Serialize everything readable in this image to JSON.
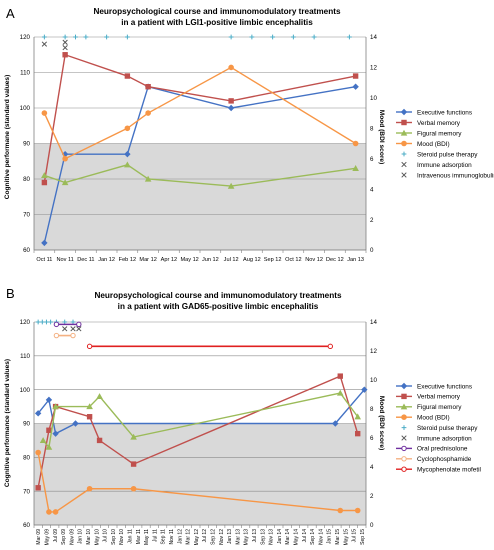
{
  "panels": [
    {
      "letter": "A",
      "title_lines": [
        "Neuropsychological course and immunomodulatory treatments",
        "in a patient with LGI1-positive limbic encephalitis"
      ],
      "y_label_left": "Cognitive performane (standard values)",
      "y_label_right": "Mood (BDI score)",
      "legend": [
        {
          "label": "Executive functions",
          "kind": "line-marker",
          "color": "#4472C4",
          "marker": "diamond"
        },
        {
          "label": "Verbal memory",
          "kind": "line-marker",
          "color": "#C0504D",
          "marker": "square"
        },
        {
          "label": "Figural memory",
          "kind": "line-marker",
          "color": "#9BBB59",
          "marker": "triangle"
        },
        {
          "label": "Mood (BDI)",
          "kind": "line-marker",
          "color": "#F79646",
          "marker": "circle"
        },
        {
          "label": "Steroid pulse therapy",
          "kind": "plus",
          "color": "#4BACC6"
        },
        {
          "label": "Immune adsorption",
          "kind": "x",
          "color": "#555555"
        },
        {
          "label": "Intravenous immunoglobulins",
          "kind": "x",
          "color": "#555555"
        }
      ]
    },
    {
      "letter": "B",
      "title_lines": [
        "Neuropsychological course and immunomodulatory treatments",
        "in a patient with GAD65-positive limbic encephalitis"
      ],
      "y_label_left": "Cognitive performance (standard values)",
      "y_label_right": "Mood (BDI score)",
      "legend": [
        {
          "label": "Executive functions",
          "kind": "line-marker",
          "color": "#4472C4",
          "marker": "diamond"
        },
        {
          "label": "Verbal memory",
          "kind": "line-marker",
          "color": "#C0504D",
          "marker": "square"
        },
        {
          "label": "Figural memory",
          "kind": "line-marker",
          "color": "#9BBB59",
          "marker": "triangle"
        },
        {
          "label": "Mood (BDI)",
          "kind": "line-marker",
          "color": "#F79646",
          "marker": "circle"
        },
        {
          "label": "Steroid pulse therapy",
          "kind": "plus",
          "color": "#4BACC6"
        },
        {
          "label": "Immune adsorption",
          "kind": "x",
          "color": "#555555"
        },
        {
          "label": "Oral prednisolone",
          "kind": "range",
          "color": "#7030A0"
        },
        {
          "label": "Cyclophosphamide",
          "kind": "range",
          "color": "#F4B183"
        },
        {
          "label": "Mycophenolate mofetil",
          "kind": "range",
          "color": "#E02020"
        }
      ]
    }
  ],
  "chart_data": [
    {
      "type": "line",
      "title": "Neuropsychological course and immunomodulatory treatments in a patient with LGI1-positive limbic encephalitis",
      "xlabel": "",
      "ylabel": "Cognitive performane (standard values)",
      "ylabel_right": "Mood (BDI score)",
      "x_ticks": [
        "Oct 11",
        "Nov 11",
        "Dec 11",
        "Jan 12",
        "Feb 12",
        "Mar 12",
        "Apr 12",
        "May 12",
        "Jun 12",
        "Jul 12",
        "Aug 12",
        "Sep 12",
        "Oct 12",
        "Nov 12",
        "Dec 12",
        "Jan 13"
      ],
      "ylim": [
        60,
        120
      ],
      "y_ticks": [
        60,
        70,
        80,
        90,
        100,
        110,
        120
      ],
      "ylim_right": [
        0,
        14
      ],
      "y_ticks_right": [
        0,
        2,
        4,
        6,
        8,
        10,
        12,
        14
      ],
      "shaded_band": [
        60,
        90
      ],
      "grid": true,
      "legend_position": "right",
      "series": [
        {
          "name": "Executive functions",
          "axis": "left",
          "x": [
            0,
            1,
            4,
            5,
            9,
            15
          ],
          "y": [
            62,
            87,
            87,
            106,
            100,
            106
          ]
        },
        {
          "name": "Verbal memory",
          "axis": "left",
          "x": [
            0,
            1,
            4,
            5,
            9,
            15
          ],
          "y": [
            79,
            115,
            109,
            106,
            102,
            109
          ]
        },
        {
          "name": "Figural memory",
          "axis": "left",
          "x": [
            0,
            1,
            4,
            5,
            9,
            15
          ],
          "y": [
            81,
            79,
            84,
            80,
            78,
            83
          ]
        },
        {
          "name": "Mood (BDI)",
          "axis": "right",
          "x": [
            0,
            1,
            4,
            5,
            9,
            15
          ],
          "y": [
            9,
            6,
            8,
            9,
            12,
            7
          ]
        }
      ],
      "events": [
        {
          "name": "Steroid pulse therapy",
          "x": [
            0,
            1,
            1.5,
            2,
            3,
            4,
            9,
            10,
            11,
            12,
            13,
            14.7
          ],
          "y": 120
        },
        {
          "name": "Immune adsorption",
          "x": [
            0
          ],
          "y": 118
        },
        {
          "name": "Intravenous immunoglobulins",
          "x": [
            1,
            1
          ],
          "y": [
            117,
            118.5
          ]
        }
      ]
    },
    {
      "type": "line",
      "title": "Neuropsychological course and immunomodulatory treatments in a patient with GAD65-positive limbic encephalitis",
      "xlabel": "",
      "ylabel": "Cognitive performance (standard values)",
      "ylabel_right": "Mood (BDI score)",
      "x_ticks": [
        "Mar 09",
        "May 09",
        "Jul 09",
        "Sep 09",
        "Nov 09",
        "Jan 10",
        "Mar 10",
        "May 10",
        "Jul 10",
        "Sep 10",
        "Nov 10",
        "Jan 11",
        "Mar 11",
        "May 11",
        "Jul 11",
        "Sep 11",
        "Nov 11",
        "Jan 12",
        "Mar 12",
        "May 12",
        "Jul 12",
        "Sep 12",
        "Nov 12",
        "Jan 13",
        "Mar 13",
        "May 13",
        "Jul 13",
        "Sep 13",
        "Nov 13",
        "Jan 14",
        "Mar 14",
        "May 14",
        "Jul 14",
        "Sep 14",
        "Nov 14",
        "Jan 15",
        "Mar 15",
        "May 15",
        "Jul 15",
        "Sep 15"
      ],
      "ylim": [
        60,
        120
      ],
      "y_ticks": [
        60,
        70,
        80,
        90,
        100,
        110,
        120
      ],
      "ylim_right": [
        0,
        14
      ],
      "y_ticks_right": [
        0,
        2,
        4,
        6,
        8,
        10,
        12,
        14
      ],
      "shaded_band": [
        60,
        90
      ],
      "grid": true,
      "legend_position": "right",
      "series": [
        {
          "name": "Executive functions",
          "axis": "left",
          "x": [
            0,
            1.3,
            2.1,
            4.5,
            35.8,
            39.3
          ],
          "y": [
            93,
            97,
            87,
            90,
            90,
            100
          ]
        },
        {
          "name": "Verbal memory",
          "axis": "left",
          "x": [
            0,
            1.3,
            2.1,
            6.2,
            7.4,
            11.5,
            36.4,
            38.5
          ],
          "y": [
            71,
            88,
            95,
            92,
            85,
            78,
            104,
            87
          ]
        },
        {
          "name": "Figural memory",
          "axis": "left",
          "x": [
            0.6,
            1.3,
            2.1,
            6.2,
            7.4,
            11.5,
            36.4,
            38.5
          ],
          "y": [
            85,
            83,
            95,
            95,
            98,
            86,
            99,
            92
          ]
        },
        {
          "name": "Mood (BDI)",
          "axis": "right",
          "x": [
            0,
            1.3,
            2.1,
            6.2,
            11.5,
            36.4,
            38.5
          ],
          "y": [
            5,
            0.9,
            0.9,
            2.5,
            2.5,
            1,
            1
          ]
        }
      ],
      "events": [
        {
          "name": "Steroid pulse therapy",
          "x": [
            0,
            0.5,
            1,
            1.5,
            2.2,
            3.2,
            4.2
          ],
          "y": 120
        },
        {
          "name": "Immune adsorption",
          "x": [
            3.2,
            4.2,
            4.9
          ],
          "y": 118
        },
        {
          "name": "Oral prednisolone",
          "range": [
            2.2,
            4.9
          ],
          "y": 119.3
        },
        {
          "name": "Cyclophosphamide",
          "range": [
            2.2,
            4.2
          ],
          "y": 116
        },
        {
          "name": "Mycophenolate mofetil",
          "range": [
            6.2,
            35.2
          ],
          "y": 112.8
        }
      ]
    }
  ]
}
